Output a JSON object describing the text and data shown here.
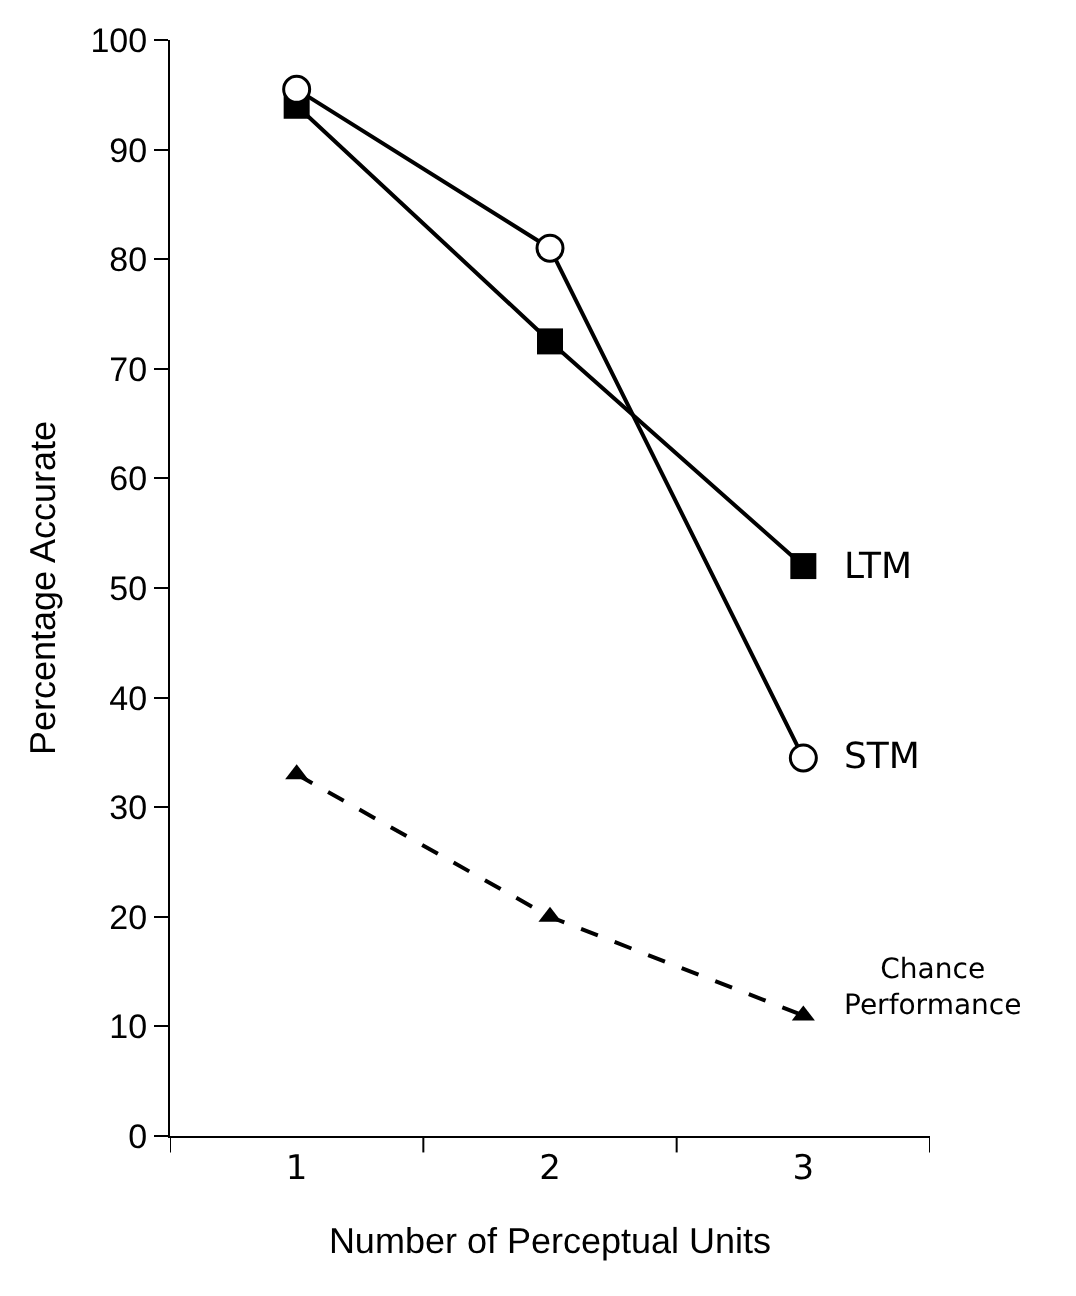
{
  "chart_data": {
    "type": "line",
    "xlabel": "Number of Perceptual Units",
    "ylabel": "Percentage Accurate",
    "categories": [
      "1",
      "2",
      "3"
    ],
    "series": [
      {
        "name": "LTM",
        "color": "#000000",
        "values": [
          94,
          72.5,
          52
        ],
        "marker": "square",
        "line_style": "solid"
      },
      {
        "name": "STM",
        "color": "#000000",
        "values": [
          95.5,
          81,
          34.5
        ],
        "marker": "circle",
        "line_style": "solid"
      },
      {
        "name": "Chance Performance",
        "color": "#000000",
        "values": [
          33,
          20,
          11
        ],
        "marker": "triangle",
        "line_style": "dashed"
      }
    ],
    "ylim": [
      0,
      100
    ],
    "yticks": [
      0,
      10,
      20,
      30,
      40,
      50,
      60,
      70,
      80,
      90,
      100
    ],
    "grid": false,
    "legend": false
  }
}
